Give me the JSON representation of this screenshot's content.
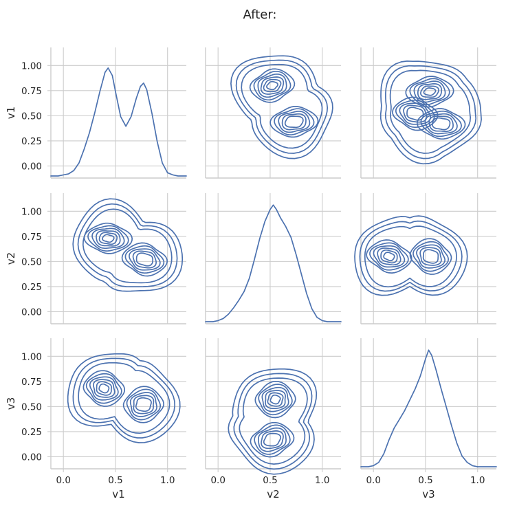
{
  "suptitle": "After:",
  "colors": {
    "line": "#4c72b0",
    "grid": "#cccccc",
    "text": "#262626"
  },
  "chart_data": {
    "type": "pairgrid-kde",
    "variables": [
      "v1",
      "v2",
      "v3"
    ],
    "axis_range": [
      -0.12,
      1.18
    ],
    "ticks": [
      0.0,
      0.25,
      0.5,
      0.75,
      1.0
    ],
    "y_tick_labels": [
      "0.00",
      "0.25",
      "0.50",
      "0.75",
      "1.00"
    ],
    "x_ticks": [
      0.0,
      0.5,
      1.0
    ],
    "x_tick_labels": [
      "0.0",
      "0.5",
      "1.0"
    ],
    "grid": true,
    "diagonal": [
      {
        "variable": "v1",
        "shape": "bimodal",
        "modes": [
          0.43,
          0.77
        ],
        "x": [
          -0.12,
          -0.05,
          0.0,
          0.05,
          0.1,
          0.15,
          0.2,
          0.25,
          0.3,
          0.35,
          0.4,
          0.43,
          0.47,
          0.5,
          0.55,
          0.6,
          0.65,
          0.7,
          0.74,
          0.77,
          0.8,
          0.85,
          0.9,
          0.95,
          1.0,
          1.05,
          1.1,
          1.18
        ],
        "density": [
          0.0,
          0.0,
          0.01,
          0.02,
          0.05,
          0.12,
          0.25,
          0.4,
          0.58,
          0.78,
          0.96,
          1.0,
          0.93,
          0.78,
          0.55,
          0.46,
          0.55,
          0.72,
          0.83,
          0.86,
          0.8,
          0.58,
          0.32,
          0.12,
          0.03,
          0.01,
          0.0,
          0.0
        ]
      },
      {
        "variable": "v2",
        "shape": "unimodal",
        "modes": [
          0.53
        ],
        "x": [
          -0.12,
          -0.05,
          0.0,
          0.05,
          0.1,
          0.15,
          0.2,
          0.25,
          0.3,
          0.35,
          0.4,
          0.45,
          0.5,
          0.53,
          0.56,
          0.6,
          0.65,
          0.7,
          0.75,
          0.8,
          0.85,
          0.9,
          0.95,
          1.0,
          1.05,
          1.1,
          1.18
        ],
        "density": [
          0.0,
          0.0,
          0.01,
          0.03,
          0.07,
          0.13,
          0.2,
          0.28,
          0.4,
          0.58,
          0.77,
          0.93,
          1.04,
          1.08,
          1.04,
          0.96,
          0.88,
          0.78,
          0.62,
          0.44,
          0.26,
          0.12,
          0.04,
          0.01,
          0.0,
          0.0,
          0.0
        ]
      },
      {
        "variable": "v3",
        "shape": "unimodal",
        "modes": [
          0.53
        ],
        "x": [
          -0.12,
          -0.05,
          0.0,
          0.05,
          0.1,
          0.15,
          0.2,
          0.25,
          0.3,
          0.35,
          0.4,
          0.45,
          0.5,
          0.53,
          0.56,
          0.6,
          0.65,
          0.7,
          0.75,
          0.8,
          0.85,
          0.9,
          0.95,
          1.0,
          1.05,
          1.1,
          1.18
        ],
        "density": [
          0.0,
          0.0,
          0.01,
          0.04,
          0.12,
          0.25,
          0.36,
          0.44,
          0.52,
          0.62,
          0.72,
          0.84,
          1.0,
          1.08,
          1.03,
          0.9,
          0.72,
          0.55,
          0.38,
          0.22,
          0.1,
          0.04,
          0.01,
          0.0,
          0.0,
          0.0,
          0.0
        ]
      }
    ],
    "off_diagonal": [
      {
        "row": "v1",
        "col": "v2",
        "centers": [
          [
            0.52,
            0.8
          ],
          [
            0.73,
            0.44
          ]
        ],
        "levels": 9
      },
      {
        "row": "v1",
        "col": "v3",
        "centers": [
          [
            0.54,
            0.74
          ],
          [
            0.65,
            0.42
          ],
          [
            0.4,
            0.52
          ]
        ],
        "levels": 9
      },
      {
        "row": "v2",
        "col": "v1",
        "centers": [
          [
            0.43,
            0.73
          ],
          [
            0.78,
            0.52
          ]
        ],
        "levels": 9
      },
      {
        "row": "v2",
        "col": "v3",
        "centers": [
          [
            0.15,
            0.55
          ],
          [
            0.55,
            0.55
          ]
        ],
        "levels": 9
      },
      {
        "row": "v3",
        "col": "v1",
        "centers": [
          [
            0.39,
            0.68
          ],
          [
            0.77,
            0.52
          ]
        ],
        "levels": 9
      },
      {
        "row": "v3",
        "col": "v2",
        "centers": [
          [
            0.55,
            0.57
          ],
          [
            0.52,
            0.17
          ]
        ],
        "levels": 9
      }
    ]
  }
}
